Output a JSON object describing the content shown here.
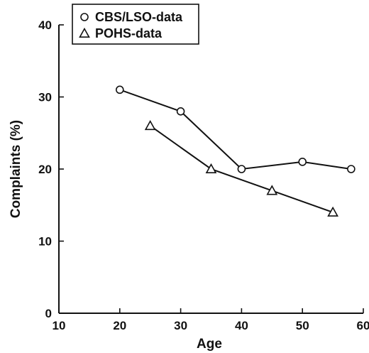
{
  "chart_data": {
    "type": "line",
    "title": "",
    "xlabel": "Age",
    "ylabel": "Complaints (%)",
    "xlim": [
      10,
      60
    ],
    "ylim": [
      0,
      40
    ],
    "x_ticks": [
      "10",
      "20",
      "30",
      "40",
      "50",
      "60"
    ],
    "y_ticks": [
      "0",
      "10",
      "20",
      "30",
      "40"
    ],
    "grid": false,
    "legend_position": "top-left",
    "series": [
      {
        "name": "CBS/LSO-data",
        "marker": "circle",
        "x": [
          20,
          30,
          40,
          50,
          58
        ],
        "y": [
          31,
          28,
          20,
          21,
          20
        ]
      },
      {
        "name": "POHS-data",
        "marker": "triangle",
        "x": [
          25,
          35,
          45,
          55
        ],
        "y": [
          26,
          20,
          17,
          14
        ]
      }
    ]
  }
}
